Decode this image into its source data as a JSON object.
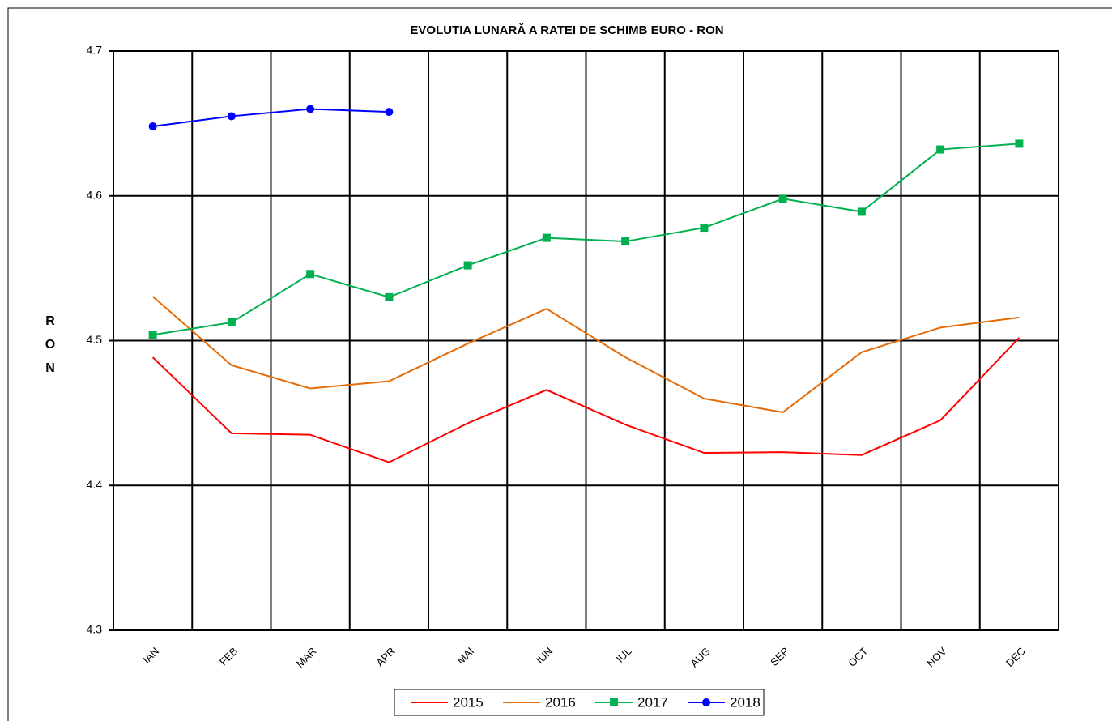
{
  "chart_data": {
    "type": "line",
    "title": "EVOLUTIA LUNARĂ A RATEI DE SCHIMB EURO - RON",
    "ylabel": "RON",
    "categories": [
      "IAN",
      "FEB",
      "MAR",
      "APR",
      "MAI",
      "IUN",
      "IUL",
      "AUG",
      "SEP",
      "OCT",
      "NOV",
      "DEC"
    ],
    "series": [
      {
        "name": "2015",
        "color": "#ff0000",
        "marker": "none",
        "values": [
          4.4885,
          4.436,
          4.435,
          4.416,
          4.443,
          4.466,
          4.442,
          4.4225,
          4.423,
          4.421,
          4.445,
          4.502
        ]
      },
      {
        "name": "2016",
        "color": "#e36c09",
        "marker": "none",
        "values": [
          4.5305,
          4.483,
          4.467,
          4.472,
          4.498,
          4.522,
          4.4885,
          4.46,
          4.4505,
          4.492,
          4.509,
          4.516
        ]
      },
      {
        "name": "2017",
        "color": "#00b050",
        "marker": "square",
        "values": [
          4.504,
          4.5126,
          4.546,
          4.53,
          4.552,
          4.571,
          4.5685,
          4.578,
          4.598,
          4.589,
          4.632,
          4.636
        ]
      },
      {
        "name": "2018",
        "color": "#0000ff",
        "marker": "circle",
        "values": [
          4.648,
          4.655,
          4.66,
          4.658,
          null,
          null,
          null,
          null,
          null,
          null,
          null,
          null
        ]
      }
    ],
    "ylim": [
      4.3,
      4.7
    ],
    "yticks": [
      4.3,
      4.4,
      4.5,
      4.6,
      4.7
    ],
    "grid": true,
    "legend": "bottom"
  }
}
